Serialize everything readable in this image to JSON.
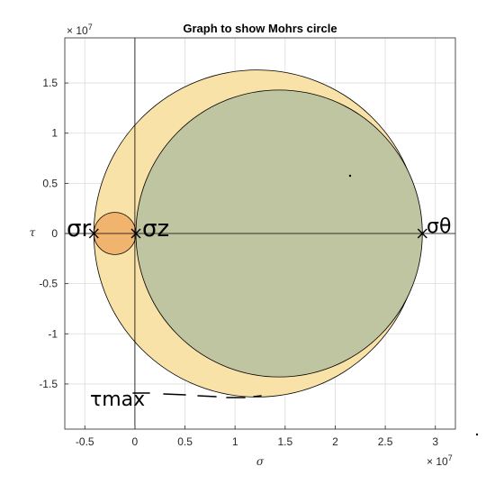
{
  "chart_data": {
    "type": "scatter",
    "title": "Graph to show Mohrs circle",
    "xlabel": "σ",
    "ylabel": "τ",
    "x_exponent_label": "× 10",
    "x_exponent_power": "7",
    "y_exponent_label": "× 10",
    "y_exponent_power": "7",
    "xlim": [
      -0.7,
      3.2
    ],
    "ylim": [
      -1.95,
      1.95
    ],
    "x_ticks": [
      -0.5,
      0,
      0.5,
      1,
      1.5,
      2,
      2.5,
      3
    ],
    "x_tick_labels": [
      "-0.5",
      "0",
      "0.5",
      "1",
      "1.5",
      "2",
      "2.5",
      "3"
    ],
    "y_ticks": [
      -1.5,
      -1,
      -0.5,
      0,
      0.5,
      1,
      1.5
    ],
    "y_tick_labels": [
      "-1.5",
      "-1",
      "-0.5",
      "0",
      "0.5",
      "1",
      "1.5"
    ],
    "grid": true,
    "circles": [
      {
        "center": 1.22,
        "radius": 1.63,
        "fill": "#f9e2a8"
      },
      {
        "center": 1.44,
        "radius": 1.43,
        "fill": "#bfc4a1"
      },
      {
        "center": -0.2,
        "radius": 0.21,
        "fill": "#f0b46f"
      }
    ],
    "points": [
      {
        "x": -0.41,
        "y": 0,
        "label": "σr"
      },
      {
        "x": 0.01,
        "y": 0,
        "label": "σz"
      },
      {
        "x": 2.87,
        "y": 0,
        "label": "σθ"
      }
    ],
    "annotations": {
      "tau_max": "τmax"
    }
  }
}
